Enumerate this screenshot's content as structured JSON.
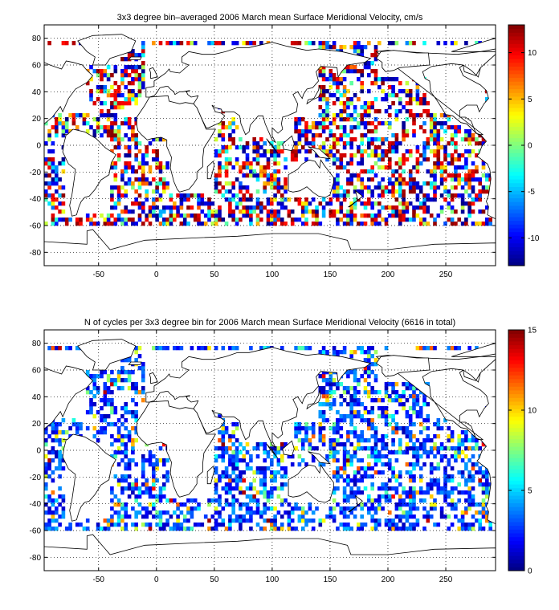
{
  "chart_data": [
    {
      "type": "heatmap",
      "title": "3x3 degree bin–averaged 2006 March mean Surface Meridional Velocity, cm/s",
      "xlabel": "",
      "ylabel": "",
      "xlim": [
        -97,
        293
      ],
      "ylim": [
        -90,
        90
      ],
      "xticks": [
        -50,
        0,
        50,
        100,
        150,
        200,
        250
      ],
      "yticks": [
        -80,
        -60,
        -40,
        -20,
        0,
        20,
        40,
        60,
        80
      ],
      "grid": true,
      "bin_size_deg": 3,
      "colorbar": {
        "range": [
          -13,
          13
        ],
        "ticks": [
          -10,
          -5,
          0,
          5,
          10
        ],
        "colormap": "jet"
      }
    },
    {
      "type": "heatmap",
      "title": "N of cycles per 3x3 degree bin for 2006 March mean Surface Meridional Velocity (6616 in total)",
      "xlabel": "",
      "ylabel": "",
      "xlim": [
        -97,
        293
      ],
      "ylim": [
        -90,
        90
      ],
      "xticks": [
        -50,
        0,
        50,
        100,
        150,
        200,
        250
      ],
      "yticks": [
        -80,
        -60,
        -40,
        -20,
        0,
        20,
        40,
        60,
        80
      ],
      "grid": true,
      "bin_size_deg": 3,
      "total_cycles": 6616,
      "colorbar": {
        "range": [
          0,
          15
        ],
        "ticks": [
          0,
          5,
          10,
          15
        ],
        "colormap": "jet"
      }
    }
  ]
}
